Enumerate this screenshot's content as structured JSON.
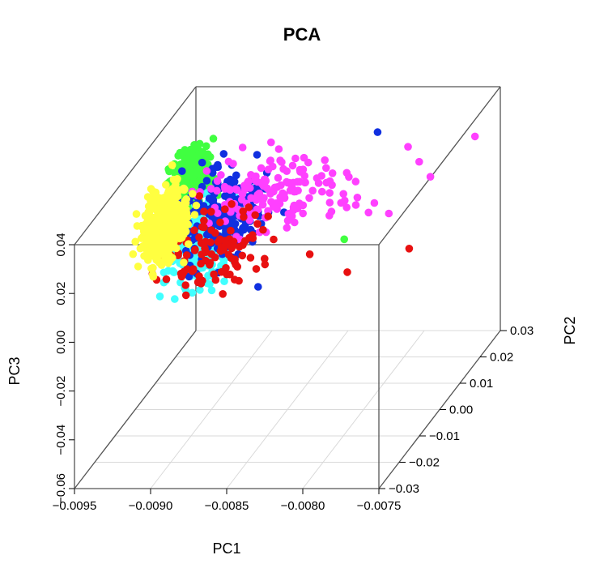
{
  "chart_data": {
    "type": "scatter",
    "title": "PCA",
    "xlabel": "PC1",
    "ylabel": "PC2",
    "zlabel": "PC3",
    "xlim": [
      -0.0095,
      -0.0075
    ],
    "ylim": [
      -0.03,
      0.03
    ],
    "zlim": [
      -0.06,
      0.04
    ],
    "xticks": [
      "−0.0095",
      "−0.0090",
      "−0.0085",
      "−0.0080",
      "−0.0075"
    ],
    "xtick_values": [
      -0.0095,
      -0.009,
      -0.0085,
      -0.008,
      -0.0075
    ],
    "yticks": [
      "−0.03",
      "−0.02",
      "−0.01",
      "0.00",
      "0.01",
      "0.02",
      "0.03"
    ],
    "ytick_values": [
      -0.03,
      -0.02,
      -0.01,
      0.0,
      0.01,
      0.02,
      0.03
    ],
    "zticks": [
      "−0.06",
      "−0.04",
      "−0.02",
      "0.00",
      "0.02",
      "0.04"
    ],
    "ztick_values": [
      -0.06,
      -0.04,
      -0.02,
      0.0,
      0.02,
      0.04
    ],
    "grid": true,
    "groups": [
      {
        "color": "#FFFF40"
      },
      {
        "color": "#40FF40"
      },
      {
        "color": "#40FFFF"
      },
      {
        "color": "#1030E0"
      },
      {
        "color": "#FF40FF"
      },
      {
        "color": "#E81010"
      }
    ]
  }
}
